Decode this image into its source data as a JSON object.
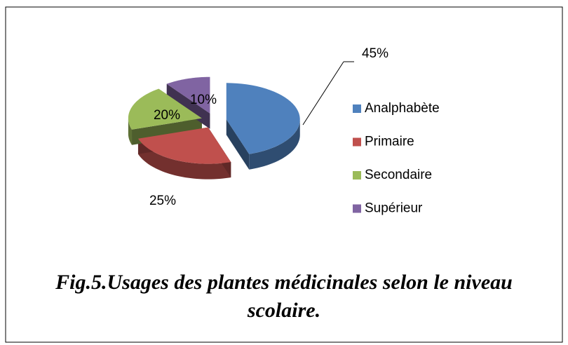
{
  "chart_data": {
    "type": "pie",
    "title": "Fig.5.Usages des plantes médicinales selon le niveau scolaire.",
    "categories": [
      "Analphabète",
      "Primaire",
      "Secondaire",
      "Supérieur"
    ],
    "values": [
      45,
      25,
      20,
      10
    ],
    "value_labels": [
      "45%",
      "25%",
      "20%",
      "10%"
    ],
    "colors": [
      "#4f81bd",
      "#c0504d",
      "#9bbb59",
      "#8064a2"
    ],
    "legend": "right"
  }
}
